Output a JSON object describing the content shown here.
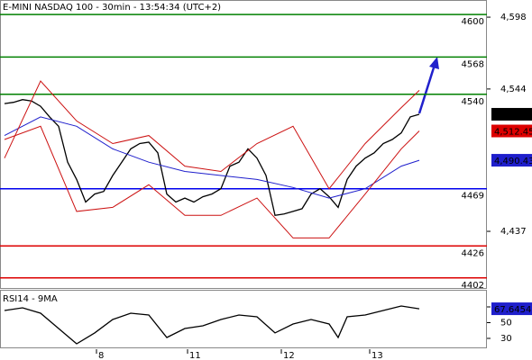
{
  "chart_data": [
    {
      "type": "line",
      "title": "E-MINI NASDAQ 100 - 30min - 13:54:34 (UTC+2)",
      "xlim": [
        -0.5,
        53.5
      ],
      "ylim": [
        4394.4,
        4610.9
      ],
      "yticks": [
        {
          "value": 4598,
          "label": "4,598"
        },
        {
          "value": 4544,
          "label": "4,544"
        },
        {
          "value": 4437,
          "label": "4,437"
        }
      ],
      "series": [
        {
          "color": "#000000",
          "x": [
            0,
            1,
            2,
            3,
            4,
            5,
            6,
            7,
            8,
            9,
            10,
            11,
            12,
            13,
            14,
            15,
            16,
            17,
            18,
            19,
            20,
            21,
            22,
            23,
            24,
            25,
            26,
            27,
            28,
            29,
            30,
            31,
            32,
            33,
            34,
            35,
            36,
            37,
            38,
            39,
            40,
            41,
            42,
            43,
            44,
            45,
            46
          ],
          "values": [
            4533,
            4534,
            4536,
            4535,
            4531,
            4523,
            4516,
            4489,
            4476,
            4459,
            4465,
            4467,
            4479,
            4489,
            4499,
            4503,
            4504,
            4496,
            4465,
            4459,
            4462,
            4459,
            4463,
            4465,
            4469,
            4486,
            4489,
            4499,
            4492,
            4479,
            4449,
            4450,
            4452,
            4454,
            4465,
            4469,
            4463,
            4455,
            4476,
            4486,
            4492,
            4496,
            4503,
            4506,
            4511,
            4523,
            4525
          ]
        },
        {
          "color": "#1f1fcc",
          "x": [
            0,
            4,
            8,
            12,
            16,
            20,
            24,
            28,
            32,
            36,
            40,
            44,
            46
          ],
          "values": [
            4509,
            4523,
            4516,
            4499,
            4489,
            4482,
            4479,
            4476,
            4470,
            4462,
            4469,
            4486,
            4490.43
          ]
        },
        {
          "color": "#cc1111",
          "x": [
            0,
            4,
            8,
            12,
            16,
            20,
            24,
            28,
            32,
            36,
            40,
            44,
            46
          ],
          "values": [
            4492,
            4550,
            4520,
            4503,
            4509,
            4486,
            4482,
            4503,
            4516,
            4469,
            4503,
            4530,
            4543
          ]
        },
        {
          "color": "#cc1111",
          "x": [
            0,
            4,
            8,
            12,
            16,
            20,
            24,
            28,
            32,
            36,
            40,
            44,
            46
          ],
          "values": [
            4506,
            4516,
            4452,
            4455,
            4472,
            4449,
            4449,
            4462,
            4432,
            4432,
            4465,
            4499,
            4512.45
          ]
        }
      ],
      "levels": [
        {
          "value": 4600,
          "color": "#008000"
        },
        {
          "value": 4568,
          "color": "#008000"
        },
        {
          "value": 4540,
          "color": "#008000"
        },
        {
          "value": 4469,
          "color": "#0000ee"
        },
        {
          "value": 4426,
          "color": "#dd0000"
        },
        {
          "value": 4402,
          "color": "#dd0000"
        }
      ],
      "tags": [
        {
          "value": 4525,
          "label": "4,525",
          "color": "#000000"
        },
        {
          "value": 4512.45,
          "label": "4,512.45",
          "color": "#dd0000"
        },
        {
          "value": 4490.43,
          "label": "4,490.43",
          "color": "#1f1fcc"
        }
      ]
    },
    {
      "type": "line",
      "title": "RSI14 - 9MA",
      "xlim": [
        -0.5,
        53.5
      ],
      "ylim": [
        17.4,
        88.3
      ],
      "yticks": [
        70,
        50,
        30
      ],
      "xticks": [
        {
          "value": 10.2,
          "label": "8"
        },
        {
          "value": 20.3,
          "label": "11"
        },
        {
          "value": 30.7,
          "label": "12"
        },
        {
          "value": 40.5,
          "label": "13"
        }
      ],
      "series": [
        {
          "color": "#000000",
          "x": [
            0,
            2,
            4,
            6,
            8,
            10,
            12,
            14,
            16,
            18,
            20,
            22,
            24,
            26,
            28,
            30,
            32,
            34,
            36,
            37,
            38,
            40,
            42,
            44,
            46
          ],
          "values": [
            65.4,
            68.9,
            62,
            42.6,
            23.1,
            36.9,
            54,
            62,
            59.7,
            31.1,
            42.6,
            46,
            54,
            59.7,
            57.4,
            36.9,
            48.3,
            54,
            48.3,
            31.1,
            57.4,
            59.7,
            65.4,
            71.1,
            67.6454
          ]
        }
      ],
      "tags": [
        {
          "value": 67.6454,
          "label": "67.6454",
          "color": "#1f1fcc"
        }
      ]
    }
  ]
}
